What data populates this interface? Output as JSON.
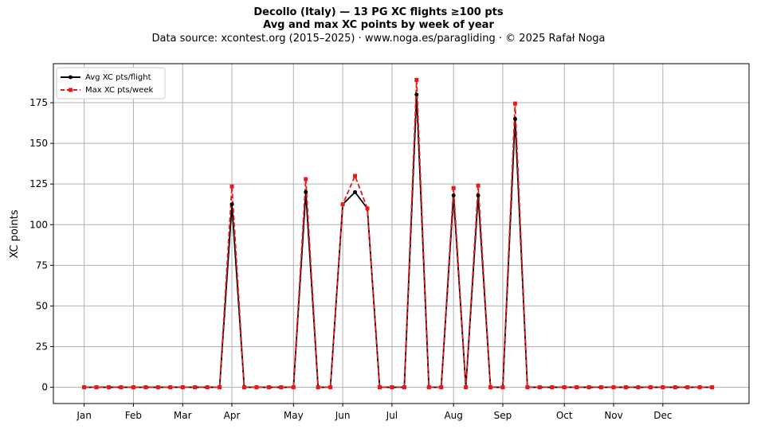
{
  "title": "Decollo (Italy)  —  13 PG XC flights ≥100 pts",
  "subtitle": "Avg and max XC points by week of year",
  "source": "Data source: xcontest.org (2015–2025)  ·  www.noga.es/paragliding  ·  © 2025 Rafał Noga",
  "chart_data": {
    "type": "line",
    "ylabel": "XC points",
    "xlabel": "",
    "xlim": [
      -2.5,
      54
    ],
    "ylim": [
      -10,
      199
    ],
    "yticks": [
      0,
      25,
      50,
      75,
      100,
      125,
      150,
      175
    ],
    "xticks": [
      {
        "label": "Jan",
        "x": 0
      },
      {
        "label": "Feb",
        "x": 4
      },
      {
        "label": "Mar",
        "x": 8
      },
      {
        "label": "Apr",
        "x": 12
      },
      {
        "label": "May",
        "x": 17
      },
      {
        "label": "Jun",
        "x": 21
      },
      {
        "label": "Jul",
        "x": 25
      },
      {
        "label": "Aug",
        "x": 30
      },
      {
        "label": "Sep",
        "x": 34
      },
      {
        "label": "Oct",
        "x": 39
      },
      {
        "label": "Nov",
        "x": 43
      },
      {
        "label": "Dec",
        "x": 47
      }
    ],
    "grid": true,
    "legend_position": "top-left",
    "x": [
      0,
      1,
      2,
      3,
      4,
      5,
      6,
      7,
      8,
      9,
      10,
      11,
      12,
      13,
      14,
      15,
      16,
      17,
      18,
      19,
      20,
      21,
      22,
      23,
      24,
      25,
      26,
      27,
      28,
      29,
      30,
      31,
      32,
      33,
      34,
      35,
      36,
      37,
      38,
      39,
      40,
      41,
      42,
      43,
      44,
      45,
      46,
      47,
      48,
      49,
      50,
      51
    ],
    "series": [
      {
        "name": "Avg XC pts/flight",
        "color": "#000000",
        "marker": "circle",
        "linestyle": "solid",
        "values": [
          0,
          0,
          0,
          0,
          0,
          0,
          0,
          0,
          0,
          0,
          0,
          0,
          112.5,
          0,
          0,
          0,
          0,
          0,
          120,
          0,
          0,
          112.5,
          120,
          110,
          0,
          0,
          0,
          180,
          0,
          0,
          118,
          0,
          118,
          0,
          0,
          165,
          0,
          0,
          0,
          0,
          0,
          0,
          0,
          0,
          0,
          0,
          0,
          0,
          0,
          0,
          0,
          0
        ]
      },
      {
        "name": "Max XC pts/week",
        "color": "#e8191a",
        "marker": "square",
        "linestyle": "dashed",
        "values": [
          0,
          0,
          0,
          0,
          0,
          0,
          0,
          0,
          0,
          0,
          0,
          0,
          123.5,
          0,
          0,
          0,
          0,
          0,
          128,
          0,
          0,
          112.5,
          130,
          110,
          0,
          0,
          0,
          189,
          0,
          0,
          122.5,
          0,
          124,
          0,
          0,
          174.5,
          0,
          0,
          0,
          0,
          0,
          0,
          0,
          0,
          0,
          0,
          0,
          0,
          0,
          0,
          0,
          0
        ]
      }
    ]
  }
}
